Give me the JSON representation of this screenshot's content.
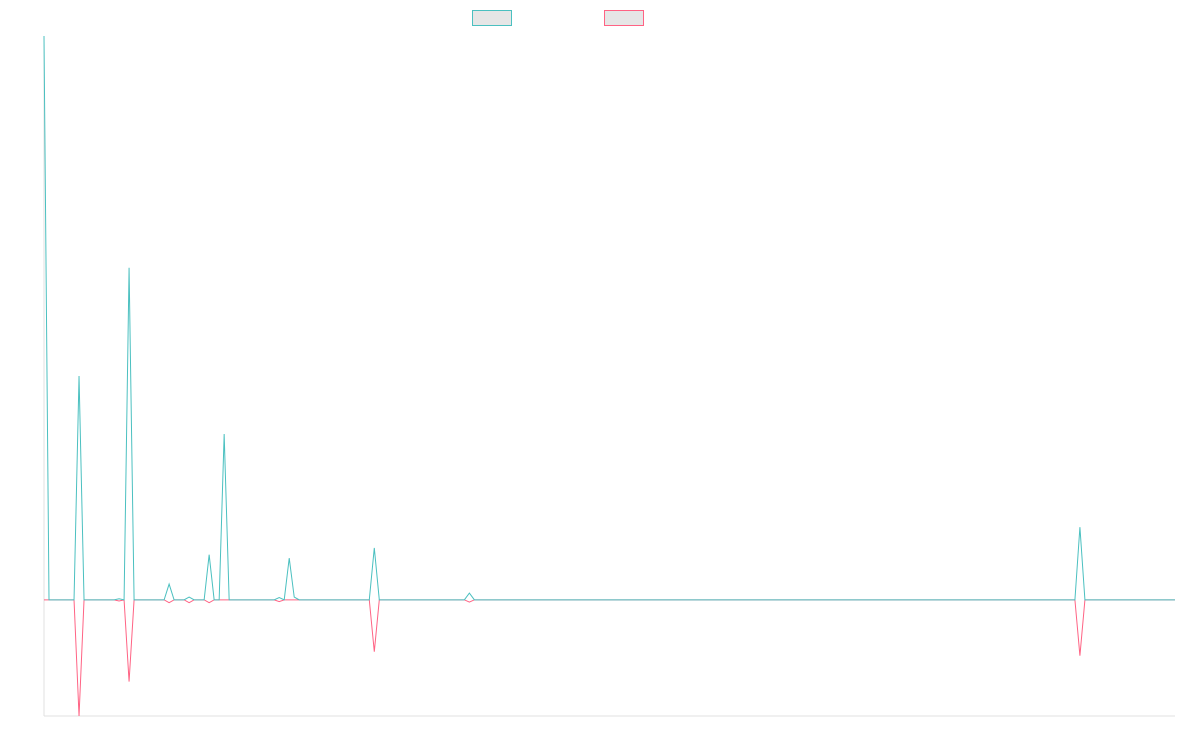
{
  "chart_data": {
    "type": "line",
    "x": [
      0,
      1,
      6,
      7,
      8,
      14,
      15,
      16,
      17,
      18,
      24,
      25,
      26,
      28,
      29,
      30,
      32,
      33,
      34,
      35,
      36,
      37,
      46,
      47,
      48,
      49,
      50,
      51,
      65,
      66,
      67,
      84,
      85,
      86,
      206,
      207,
      208,
      226
    ],
    "series": [
      {
        "color": "#4bc0c0",
        "values": [
          100,
          0,
          0,
          39.7,
          0,
          0,
          0.2,
          0,
          58.9,
          0,
          0,
          2.8,
          0,
          0,
          0.5,
          0,
          0,
          8,
          0,
          0,
          29.4,
          0,
          0,
          0.4,
          0,
          7.4,
          0.5,
          0,
          0,
          9.2,
          0,
          0,
          1.2,
          0,
          0,
          12.9,
          0,
          0
        ]
      },
      {
        "color": "#ff6384",
        "values": [
          0,
          0,
          0,
          -20.6,
          0,
          0,
          -0.2,
          0,
          -14.5,
          0,
          0,
          -0.5,
          0,
          0,
          -0.5,
          0,
          0,
          -0.5,
          0,
          0,
          0,
          0,
          0,
          -0.3,
          0,
          0,
          0,
          0,
          0,
          -9.2,
          0,
          0,
          -0.4,
          0,
          0,
          -9.9,
          0,
          0
        ]
      }
    ],
    "xlim": [
      0,
      226
    ],
    "ylim": [
      -20.6,
      100
    ],
    "legend": "top"
  }
}
